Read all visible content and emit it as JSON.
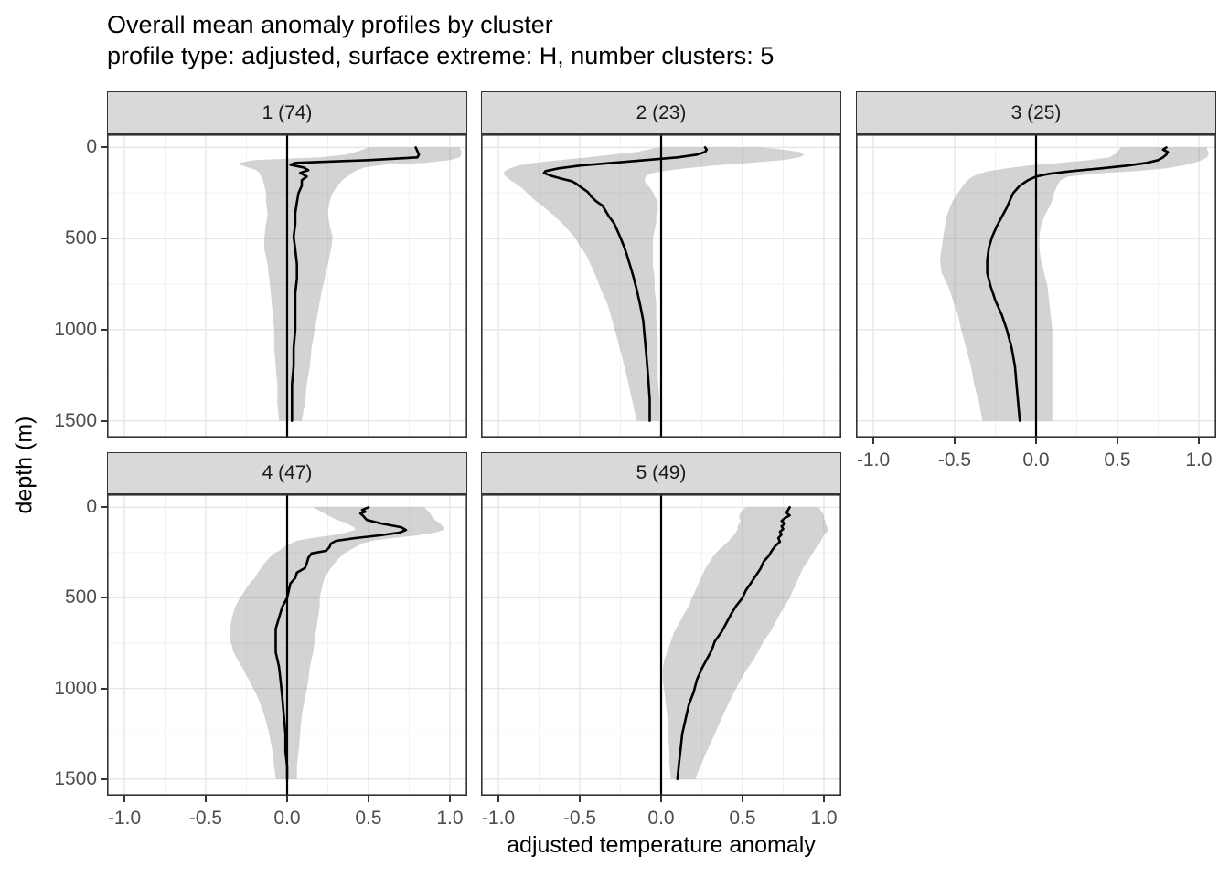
{
  "title": "Overall mean anomaly profiles by cluster",
  "subtitle": "profile type: adjusted, surface extreme: H, number clusters: 5",
  "colors": {
    "title_color": "#000000",
    "strip_bg": "#d9d9d9",
    "panel_bg": "#ffffff",
    "panel_border": "#333333",
    "grid_major": "#e6e6e6",
    "grid_minor": "#f2f2f2",
    "ribbon": "rgba(127,127,127,0.34)",
    "mean_line": "#000000",
    "zero_line": "#000000",
    "axis_text": "#4d4d4d",
    "tick_color": "#333333"
  },
  "axes": {
    "x": {
      "label": "adjusted temperature anomaly",
      "domain": [
        -1.107,
        1.107
      ],
      "ticks": [
        -1,
        -0.5,
        0,
        0.5,
        1
      ],
      "tick_labels": [
        "-1.0",
        "-0.5",
        "0.0",
        "0.5",
        "1.0"
      ],
      "minor": [
        -0.75,
        -0.25,
        0.25,
        0.75
      ]
    },
    "y": {
      "label": "depth (m)",
      "domain": [
        -72,
        1592
      ],
      "ticks": [
        0,
        500,
        1000,
        1500
      ],
      "tick_labels": [
        "0",
        "500",
        "1000",
        "1500"
      ],
      "minor": [
        250,
        750,
        1250
      ]
    }
  },
  "chart_data": {
    "type": "line",
    "description": "faceted vertical profiles: black cluster-mean line with gray spread ribbon, black reference line at x=0, depth axis reversed",
    "columns": [
      "depth_m",
      "mean",
      "lower",
      "upper"
    ],
    "facets": [
      {
        "label": "1 (74)",
        "cluster": "1",
        "count": 74,
        "points": [
          [
            0,
            0.79,
            0.5,
            1.06
          ],
          [
            20,
            0.8,
            0.44,
            1.07
          ],
          [
            40,
            0.81,
            0.36,
            1.07
          ],
          [
            55,
            0.8,
            0.2,
            1.06
          ],
          [
            70,
            0.5,
            -0.2,
            1.0
          ],
          [
            85,
            0.05,
            -0.29,
            0.85
          ],
          [
            95,
            0.02,
            -0.29,
            0.6
          ],
          [
            110,
            0.1,
            -0.24,
            0.48
          ],
          [
            125,
            0.13,
            -0.19,
            0.43
          ],
          [
            140,
            0.08,
            -0.17,
            0.4
          ],
          [
            160,
            0.12,
            -0.16,
            0.37
          ],
          [
            180,
            0.09,
            -0.15,
            0.34
          ],
          [
            210,
            0.09,
            -0.14,
            0.31
          ],
          [
            250,
            0.07,
            -0.13,
            0.28
          ],
          [
            300,
            0.06,
            -0.13,
            0.26
          ],
          [
            360,
            0.05,
            -0.12,
            0.25
          ],
          [
            420,
            0.05,
            -0.13,
            0.26
          ],
          [
            490,
            0.04,
            -0.14,
            0.28
          ],
          [
            560,
            0.05,
            -0.14,
            0.27
          ],
          [
            640,
            0.06,
            -0.12,
            0.25
          ],
          [
            720,
            0.06,
            -0.11,
            0.23
          ],
          [
            800,
            0.05,
            -0.1,
            0.21
          ],
          [
            900,
            0.05,
            -0.09,
            0.19
          ],
          [
            1000,
            0.05,
            -0.08,
            0.17
          ],
          [
            1100,
            0.04,
            -0.08,
            0.15
          ],
          [
            1200,
            0.04,
            -0.07,
            0.14
          ],
          [
            1300,
            0.03,
            -0.06,
            0.12
          ],
          [
            1400,
            0.03,
            -0.06,
            0.11
          ],
          [
            1500,
            0.03,
            -0.05,
            0.09
          ]
        ]
      },
      {
        "label": "2 (23)",
        "cluster": "2",
        "count": 23,
        "points": [
          [
            0,
            0.27,
            -0.02,
            0.62
          ],
          [
            12,
            0.28,
            -0.08,
            0.75
          ],
          [
            25,
            0.27,
            -0.15,
            0.85
          ],
          [
            40,
            0.22,
            -0.3,
            0.88
          ],
          [
            55,
            0.1,
            -0.45,
            0.85
          ],
          [
            70,
            -0.1,
            -0.62,
            0.75
          ],
          [
            85,
            -0.3,
            -0.78,
            0.55
          ],
          [
            100,
            -0.5,
            -0.88,
            0.32
          ],
          [
            115,
            -0.63,
            -0.93,
            0.15
          ],
          [
            130,
            -0.71,
            -0.96,
            0.02
          ],
          [
            140,
            -0.72,
            -0.97,
            -0.05
          ],
          [
            155,
            -0.68,
            -0.96,
            -0.09
          ],
          [
            170,
            -0.62,
            -0.94,
            -0.1
          ],
          [
            185,
            -0.55,
            -0.92,
            -0.1
          ],
          [
            200,
            -0.52,
            -0.89,
            -0.09
          ],
          [
            220,
            -0.49,
            -0.86,
            -0.07
          ],
          [
            245,
            -0.45,
            -0.83,
            -0.05
          ],
          [
            270,
            -0.43,
            -0.8,
            -0.04
          ],
          [
            295,
            -0.4,
            -0.77,
            -0.02
          ],
          [
            320,
            -0.36,
            -0.73,
            -0.02
          ],
          [
            350,
            -0.34,
            -0.69,
            -0.02
          ],
          [
            380,
            -0.32,
            -0.65,
            -0.03
          ],
          [
            415,
            -0.29,
            -0.61,
            -0.03
          ],
          [
            455,
            -0.27,
            -0.57,
            -0.04
          ],
          [
            495,
            -0.25,
            -0.53,
            -0.05
          ],
          [
            540,
            -0.23,
            -0.5,
            -0.05
          ],
          [
            590,
            -0.21,
            -0.46,
            -0.05
          ],
          [
            650,
            -0.19,
            -0.43,
            -0.05
          ],
          [
            710,
            -0.17,
            -0.4,
            -0.04
          ],
          [
            780,
            -0.15,
            -0.37,
            -0.04
          ],
          [
            860,
            -0.13,
            -0.33,
            -0.03
          ],
          [
            950,
            -0.11,
            -0.3,
            -0.03
          ],
          [
            1050,
            -0.1,
            -0.27,
            -0.02
          ],
          [
            1150,
            -0.09,
            -0.24,
            -0.02
          ],
          [
            1260,
            -0.08,
            -0.21,
            -0.02
          ],
          [
            1380,
            -0.07,
            -0.18,
            -0.01
          ],
          [
            1500,
            -0.07,
            -0.15,
            -0.01
          ]
        ]
      },
      {
        "label": "3 (25)",
        "cluster": "3",
        "count": 25,
        "points": [
          [
            0,
            0.8,
            0.52,
            1.05
          ],
          [
            12,
            0.78,
            0.51,
            1.05
          ],
          [
            25,
            0.81,
            0.5,
            1.06
          ],
          [
            40,
            0.8,
            0.48,
            1.06
          ],
          [
            55,
            0.78,
            0.45,
            1.05
          ],
          [
            70,
            0.75,
            0.33,
            1.02
          ],
          [
            85,
            0.68,
            0.15,
            0.97
          ],
          [
            100,
            0.56,
            -0.05,
            0.9
          ],
          [
            115,
            0.4,
            -0.18,
            0.8
          ],
          [
            130,
            0.22,
            -0.29,
            0.62
          ],
          [
            145,
            0.08,
            -0.35,
            0.35
          ],
          [
            160,
            0.0,
            -0.39,
            0.2
          ],
          [
            180,
            -0.05,
            -0.42,
            0.15
          ],
          [
            210,
            -0.1,
            -0.45,
            0.13
          ],
          [
            250,
            -0.14,
            -0.48,
            0.11
          ],
          [
            290,
            -0.16,
            -0.51,
            0.1
          ],
          [
            330,
            -0.18,
            -0.53,
            0.08
          ],
          [
            380,
            -0.21,
            -0.55,
            0.05
          ],
          [
            430,
            -0.24,
            -0.56,
            0.03
          ],
          [
            490,
            -0.27,
            -0.57,
            0.02
          ],
          [
            550,
            -0.29,
            -0.58,
            0.02
          ],
          [
            620,
            -0.3,
            -0.59,
            0.03
          ],
          [
            690,
            -0.3,
            -0.58,
            0.05
          ],
          [
            760,
            -0.28,
            -0.54,
            0.07
          ],
          [
            840,
            -0.25,
            -0.51,
            0.08
          ],
          [
            920,
            -0.21,
            -0.48,
            0.09
          ],
          [
            1000,
            -0.18,
            -0.46,
            0.1
          ],
          [
            1100,
            -0.15,
            -0.43,
            0.1
          ],
          [
            1200,
            -0.13,
            -0.4,
            0.1
          ],
          [
            1300,
            -0.12,
            -0.38,
            0.1
          ],
          [
            1400,
            -0.11,
            -0.35,
            0.1
          ],
          [
            1500,
            -0.1,
            -0.33,
            0.1
          ]
        ]
      },
      {
        "label": "4 (47)",
        "cluster": "4",
        "count": 47,
        "points": [
          [
            0,
            0.5,
            0.16,
            0.84
          ],
          [
            15,
            0.46,
            0.19,
            0.86
          ],
          [
            25,
            0.48,
            0.21,
            0.87
          ],
          [
            35,
            0.45,
            0.23,
            0.88
          ],
          [
            50,
            0.47,
            0.26,
            0.89
          ],
          [
            70,
            0.49,
            0.31,
            0.91
          ],
          [
            90,
            0.58,
            0.37,
            0.94
          ],
          [
            110,
            0.7,
            0.41,
            0.96
          ],
          [
            125,
            0.73,
            0.42,
            0.96
          ],
          [
            140,
            0.69,
            0.36,
            0.91
          ],
          [
            155,
            0.57,
            0.27,
            0.8
          ],
          [
            170,
            0.42,
            0.15,
            0.65
          ],
          [
            185,
            0.3,
            0.06,
            0.52
          ],
          [
            200,
            0.27,
            0.02,
            0.46
          ],
          [
            220,
            0.26,
            -0.02,
            0.42
          ],
          [
            240,
            0.24,
            -0.05,
            0.38
          ],
          [
            255,
            0.15,
            -0.08,
            0.35
          ],
          [
            280,
            0.13,
            -0.11,
            0.32
          ],
          [
            310,
            0.12,
            -0.14,
            0.29
          ],
          [
            335,
            0.11,
            -0.16,
            0.27
          ],
          [
            360,
            0.06,
            -0.18,
            0.25
          ],
          [
            390,
            0.05,
            -0.2,
            0.23
          ],
          [
            420,
            0.02,
            -0.23,
            0.22
          ],
          [
            460,
            0.01,
            -0.26,
            0.21
          ],
          [
            500,
            0.0,
            -0.29,
            0.2
          ],
          [
            550,
            -0.03,
            -0.32,
            0.2
          ],
          [
            610,
            -0.05,
            -0.34,
            0.19
          ],
          [
            670,
            -0.07,
            -0.35,
            0.18
          ],
          [
            730,
            -0.07,
            -0.35,
            0.17
          ],
          [
            800,
            -0.07,
            -0.33,
            0.16
          ],
          [
            880,
            -0.05,
            -0.28,
            0.14
          ],
          [
            960,
            -0.04,
            -0.23,
            0.13
          ],
          [
            1050,
            -0.03,
            -0.18,
            0.11
          ],
          [
            1150,
            -0.02,
            -0.14,
            0.09
          ],
          [
            1250,
            -0.01,
            -0.11,
            0.08
          ],
          [
            1350,
            -0.01,
            -0.09,
            0.07
          ],
          [
            1430,
            0.0,
            -0.08,
            0.06
          ],
          [
            1500,
            0.0,
            -0.07,
            0.06
          ]
        ]
      },
      {
        "label": "5 (49)",
        "cluster": "5",
        "count": 49,
        "points": [
          [
            0,
            0.79,
            0.52,
            0.97
          ],
          [
            15,
            0.78,
            0.5,
            0.98
          ],
          [
            30,
            0.77,
            0.49,
            0.99
          ],
          [
            45,
            0.79,
            0.48,
            1.0
          ],
          [
            60,
            0.76,
            0.48,
            1.0
          ],
          [
            75,
            0.74,
            0.49,
            1.01
          ],
          [
            90,
            0.76,
            0.48,
            1.01
          ],
          [
            105,
            0.74,
            0.47,
            1.02
          ],
          [
            120,
            0.75,
            0.47,
            1.03
          ],
          [
            135,
            0.73,
            0.46,
            1.02
          ],
          [
            150,
            0.74,
            0.45,
            1.0
          ],
          [
            170,
            0.72,
            0.43,
            0.99
          ],
          [
            190,
            0.73,
            0.41,
            0.98
          ],
          [
            215,
            0.7,
            0.38,
            0.96
          ],
          [
            240,
            0.68,
            0.35,
            0.94
          ],
          [
            270,
            0.66,
            0.32,
            0.92
          ],
          [
            300,
            0.63,
            0.3,
            0.9
          ],
          [
            340,
            0.61,
            0.27,
            0.87
          ],
          [
            380,
            0.58,
            0.25,
            0.85
          ],
          [
            420,
            0.55,
            0.23,
            0.83
          ],
          [
            460,
            0.52,
            0.21,
            0.81
          ],
          [
            500,
            0.5,
            0.19,
            0.79
          ],
          [
            545,
            0.46,
            0.17,
            0.76
          ],
          [
            590,
            0.43,
            0.14,
            0.73
          ],
          [
            640,
            0.4,
            0.11,
            0.7
          ],
          [
            690,
            0.37,
            0.08,
            0.67
          ],
          [
            740,
            0.33,
            0.06,
            0.63
          ],
          [
            790,
            0.31,
            0.04,
            0.6
          ],
          [
            840,
            0.28,
            0.02,
            0.57
          ],
          [
            890,
            0.25,
            0.01,
            0.53
          ],
          [
            950,
            0.22,
            0.01,
            0.49
          ],
          [
            1020,
            0.2,
            0.02,
            0.45
          ],
          [
            1090,
            0.17,
            0.03,
            0.41
          ],
          [
            1170,
            0.15,
            0.04,
            0.37
          ],
          [
            1250,
            0.13,
            0.04,
            0.33
          ],
          [
            1330,
            0.12,
            0.05,
            0.29
          ],
          [
            1410,
            0.11,
            0.05,
            0.25
          ],
          [
            1500,
            0.1,
            0.06,
            0.21
          ]
        ]
      }
    ]
  }
}
